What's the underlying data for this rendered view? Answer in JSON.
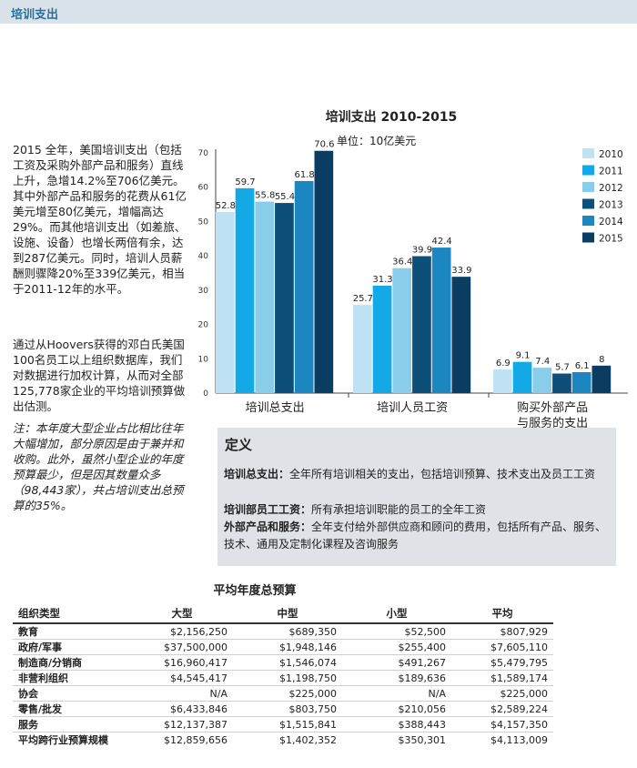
{
  "header": {
    "title": "培训支出"
  },
  "intro_text": [
    "2015 全年，美国培训支出（包括工资及采购外部产品和服务）直线上升，急增14.2%至706亿美元。其中外部产品和服务的花费从61亿美元增至80亿美元，增幅高达29%。而其他培训支出（如差旅、设施、设备）也增长两倍有余，达到287亿美元。同时，培训人员薪酬则骤降20%至339亿美元，相当于2011-12年的水平。",
    "通过从Hoovers获得的邓白氏美国100名员工以上组织数据库，我们对数据进行加权计算，从而对全部125,778家企业的平均培训预算做出估测。",
    "注：本年度大型企业占比相比往年大幅增加，部分原因是由于兼并和收购。此外，虽然小型企业的年度预算最少，但是因其数量众多（98,443家），共占培训支出总预算的35%。"
  ],
  "chart_data": {
    "type": "bar",
    "title": "培训支出 2010-2015",
    "subtitle": "单位：10亿美元",
    "categories": [
      "培训总支出",
      "培训人员工资",
      "购买外部产品\n与服务的支出"
    ],
    "series": [
      {
        "name": "2010",
        "color": "#bfe3f5",
        "values": [
          52.8,
          25.7,
          6.9
        ]
      },
      {
        "name": "2011",
        "color": "#13a9e6",
        "values": [
          59.7,
          31.3,
          9.1
        ]
      },
      {
        "name": "2012",
        "color": "#89cdeb",
        "values": [
          55.8,
          36.4,
          7.4
        ]
      },
      {
        "name": "2013",
        "color": "#0d4f78",
        "values": [
          55.4,
          39.9,
          5.7
        ]
      },
      {
        "name": "2014",
        "color": "#1b86c0",
        "values": [
          61.8,
          42.4,
          6.1
        ]
      },
      {
        "name": "2015",
        "color": "#0b3d62",
        "values": [
          70.6,
          33.9,
          8
        ]
      }
    ],
    "ylim": [
      0,
      70
    ],
    "yticks": [
      0,
      10,
      20,
      30,
      40,
      50,
      60,
      70
    ],
    "legend": "right"
  },
  "definitions": {
    "title": "定义",
    "items": [
      {
        "term": "培训总支出：",
        "text": "全年所有培训相关的支出，包括培训预算、技术支出及员工工资"
      },
      {
        "term": "培训部员工工资：",
        "text": "所有承担培训职能的员工的全年工资"
      },
      {
        "term": "外部产品和服务：",
        "text": "全年支付给外部供应商和顾问的费用，包括所有产品、服务、技术、通用及定制化课程及咨询服务"
      }
    ]
  },
  "budget_table": {
    "title": "平均年度总预算",
    "headers": [
      "组织类型",
      "大型",
      "中型",
      "小型",
      "平均"
    ],
    "rows": [
      [
        "教育",
        "$2,156,250",
        "$689,350",
        "$52,500",
        "$807,929"
      ],
      [
        "政府/军事",
        "$37,500,000",
        "$1,948,146",
        "$255,400",
        "$7,605,110"
      ],
      [
        "制造商/分销商",
        "$16,960,417",
        "$1,546,074",
        "$491,267",
        "$5,479,795"
      ],
      [
        "非营利组织",
        "$4,545,417",
        "$1,198,750",
        "$189,636",
        "$1,589,174"
      ],
      [
        "协会",
        "N/A",
        "$225,000",
        "N/A",
        "$225,000"
      ],
      [
        "零售/批发",
        "$6,433,846",
        "$803,750",
        "$210,056",
        "$2,589,224"
      ],
      [
        "服务",
        "$12,137,387",
        "$1,515,841",
        "$388,443",
        "$4,157,350"
      ]
    ],
    "summary": [
      "平均跨行业预算规模",
      "$12,859,656",
      "$1,402,352",
      "$350,301",
      "$4,113,009"
    ]
  }
}
